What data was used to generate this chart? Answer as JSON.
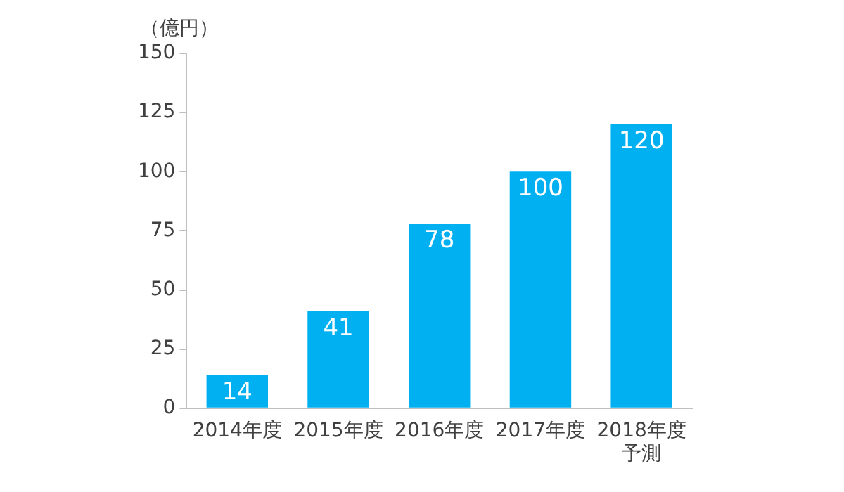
{
  "chart_data": {
    "type": "bar",
    "ylabel": "（億円）",
    "categories": [
      "2014年度",
      "2015年度",
      "2016年度",
      "2017年度",
      "2018年度予測"
    ],
    "values": [
      14,
      41,
      78,
      100,
      120
    ],
    "color": "#00b0f0",
    "ylim": [
      0,
      150
    ],
    "yticks": [
      0,
      25,
      50,
      75,
      100,
      125,
      150
    ],
    "grid": false,
    "legend": false,
    "data_labels": true
  }
}
